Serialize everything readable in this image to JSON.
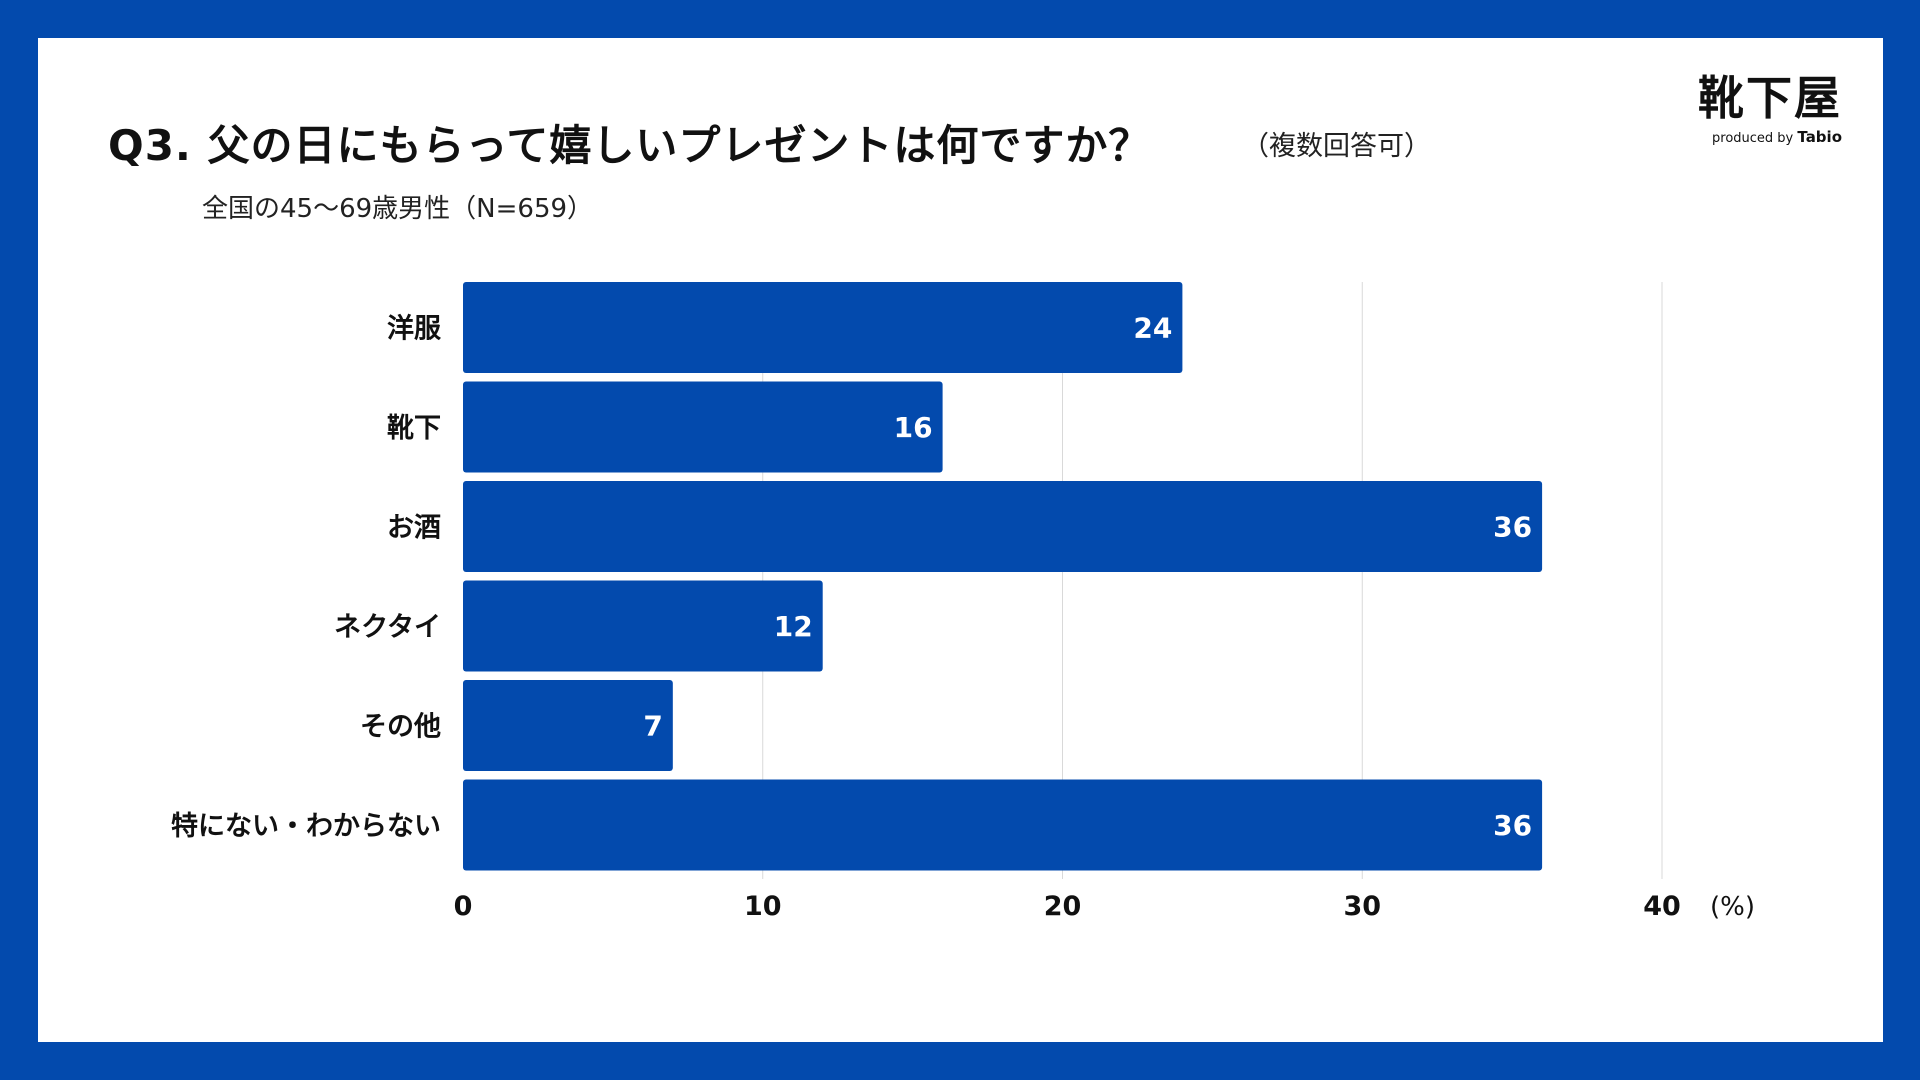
{
  "header": {
    "title": "Q3. 父の日にもらって嬉しいプレゼントは何ですか？",
    "title_note": "（複数回答可）",
    "subtitle": "全国の45～69歳男性（N=659）"
  },
  "logo": {
    "name": "靴下屋",
    "produced_by": "produced by",
    "brand": "Tabio"
  },
  "colors": {
    "bar": "#034aad",
    "frame": "#034aad",
    "grid": "#d9d9d9",
    "label_text": "#111111",
    "bar_label_text": "#ffffff"
  },
  "chart_data": {
    "type": "bar",
    "orientation": "horizontal",
    "categories": [
      "洋服",
      "靴下",
      "お酒",
      "ネクタイ",
      "その他",
      "特にない・わからない"
    ],
    "values": [
      24,
      16,
      36,
      12,
      7,
      36
    ],
    "data_labels": [
      "24",
      "16",
      "36",
      "12",
      "7",
      "36"
    ],
    "xlim": [
      0,
      40
    ],
    "xticks": [
      0,
      10,
      20,
      30,
      40
    ],
    "xtick_labels": [
      "0",
      "10",
      "20",
      "30",
      "40"
    ],
    "unit_label": "(%)",
    "grid": true,
    "legend": "none"
  }
}
